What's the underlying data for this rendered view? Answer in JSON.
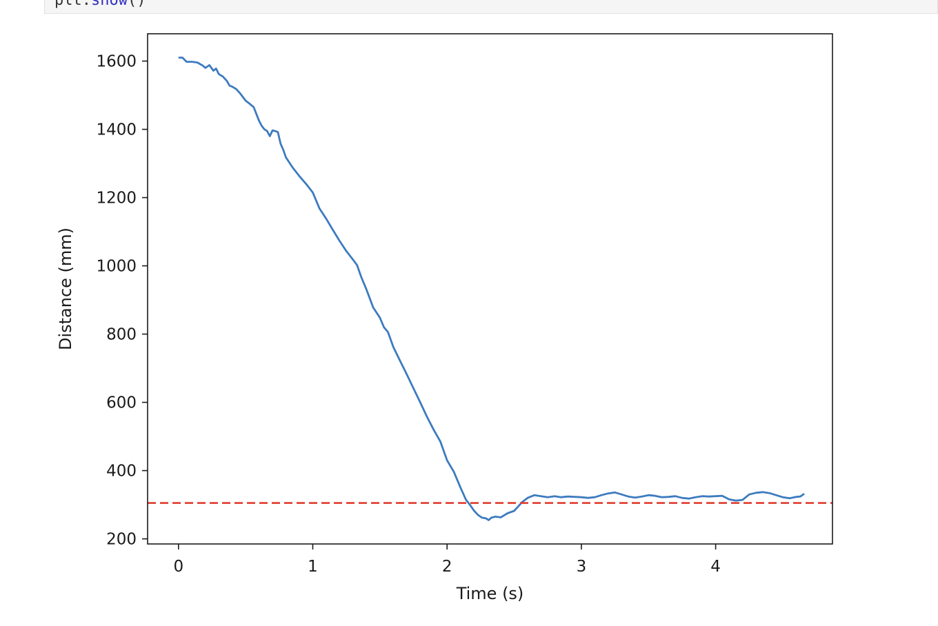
{
  "notebook": {
    "code_line": {
      "object": "plt",
      "dot": ".",
      "method": "show",
      "args": "()"
    }
  },
  "chart_data": {
    "type": "line",
    "title": "",
    "xlabel": "Time (s)",
    "ylabel": "Distance (mm)",
    "xlim": [
      -0.23,
      4.87
    ],
    "ylim": [
      185,
      1680
    ],
    "xticks": [
      0,
      1,
      2,
      3,
      4
    ],
    "yticks": [
      200,
      400,
      600,
      800,
      1000,
      1200,
      1400,
      1600
    ],
    "grid": false,
    "legend": "none",
    "series": [
      {
        "color": "#3d7bbf",
        "style": "solid",
        "x": [
          0.0,
          0.03,
          0.06,
          0.1,
          0.14,
          0.18,
          0.2,
          0.23,
          0.26,
          0.28,
          0.3,
          0.33,
          0.36,
          0.38,
          0.4,
          0.43,
          0.46,
          0.5,
          0.53,
          0.56,
          0.58,
          0.6,
          0.62,
          0.64,
          0.66,
          0.68,
          0.7,
          0.72,
          0.74,
          0.76,
          0.78,
          0.8,
          0.85,
          0.9,
          0.95,
          1.0,
          1.05,
          1.1,
          1.15,
          1.2,
          1.25,
          1.3,
          1.33,
          1.36,
          1.4,
          1.45,
          1.5,
          1.53,
          1.56,
          1.6,
          1.65,
          1.7,
          1.75,
          1.8,
          1.85,
          1.9,
          1.95,
          2.0,
          2.05,
          2.1,
          2.14,
          2.17,
          2.2,
          2.23,
          2.26,
          2.29,
          2.31,
          2.33,
          2.36,
          2.4,
          2.45,
          2.5,
          2.53,
          2.56,
          2.6,
          2.65,
          2.7,
          2.75,
          2.8,
          2.85,
          2.9,
          2.95,
          3.0,
          3.05,
          3.1,
          3.15,
          3.2,
          3.25,
          3.3,
          3.35,
          3.4,
          3.45,
          3.5,
          3.55,
          3.6,
          3.65,
          3.7,
          3.75,
          3.8,
          3.85,
          3.9,
          3.95,
          4.0,
          4.05,
          4.1,
          4.15,
          4.2,
          4.25,
          4.3,
          4.35,
          4.4,
          4.45,
          4.5,
          4.55,
          4.6,
          4.63,
          4.66
        ],
        "y": [
          1610,
          1610,
          1598,
          1598,
          1596,
          1587,
          1580,
          1588,
          1572,
          1578,
          1562,
          1555,
          1542,
          1528,
          1525,
          1518,
          1505,
          1484,
          1475,
          1465,
          1445,
          1425,
          1410,
          1400,
          1395,
          1380,
          1397,
          1395,
          1392,
          1358,
          1340,
          1318,
          1288,
          1263,
          1240,
          1215,
          1168,
          1138,
          1105,
          1073,
          1043,
          1018,
          1002,
          968,
          930,
          878,
          848,
          820,
          806,
          762,
          722,
          682,
          641,
          600,
          558,
          520,
          485,
          430,
          397,
          350,
          315,
          300,
          283,
          270,
          262,
          260,
          255,
          262,
          265,
          263,
          275,
          282,
          295,
          308,
          320,
          328,
          325,
          322,
          325,
          322,
          324,
          323,
          322,
          320,
          322,
          328,
          333,
          336,
          330,
          324,
          321,
          324,
          328,
          326,
          322,
          323,
          325,
          320,
          318,
          322,
          325,
          324,
          325,
          326,
          316,
          312,
          314,
          330,
          335,
          337,
          334,
          328,
          322,
          319,
          323,
          324,
          332
        ]
      },
      {
        "color": "#e03b2f",
        "style": "dashed",
        "x": [
          -0.23,
          4.87
        ],
        "y": [
          305,
          305
        ]
      }
    ]
  }
}
